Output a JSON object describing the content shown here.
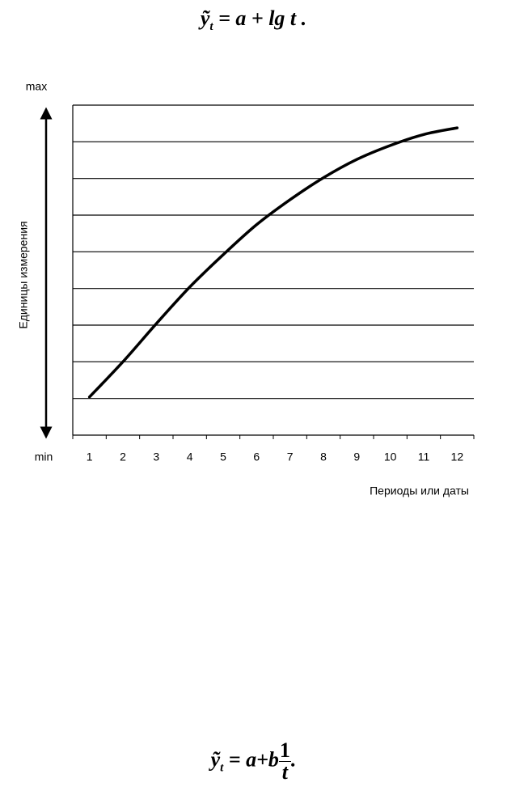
{
  "formula_top": {
    "lhs": "ỹ",
    "sub": "t",
    "rhs": " = a + lg t ."
  },
  "formula_bottom": {
    "lhs": "ỹ",
    "sub": "t",
    "rhs": " = a+b",
    "num": "1",
    "den": "t",
    "end": "."
  },
  "chart_data": {
    "type": "line",
    "y_max_label": "max",
    "y_min_label": "min",
    "y_label": "Единицы измерения",
    "x_label": "Периоды или даты",
    "categories": [
      "1",
      "2",
      "3",
      "4",
      "5",
      "6",
      "7",
      "8",
      "9",
      "10",
      "11",
      "12"
    ],
    "values": [
      1.04,
      2.0,
      3.04,
      4.04,
      4.92,
      5.74,
      6.42,
      7.02,
      7.52,
      7.9,
      8.2,
      8.38
    ],
    "color": "#000000",
    "ylim": [
      0,
      9
    ],
    "yticks": [
      1,
      2,
      3,
      4,
      5,
      6,
      7,
      8
    ],
    "grid": true
  }
}
